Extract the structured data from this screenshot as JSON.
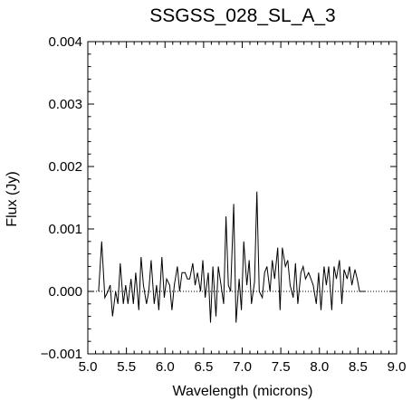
{
  "chart_data": {
    "type": "line",
    "title": "SSGSS_028_SL_A_3",
    "xlabel": "Wavelength (microns)",
    "ylabel": "Flux (Jy)",
    "xlim": [
      5.0,
      9.0
    ],
    "ylim": [
      -0.001,
      0.004
    ],
    "xticks": [
      5.0,
      5.5,
      6.0,
      6.5,
      7.0,
      7.5,
      8.0,
      8.5,
      9.0
    ],
    "xtick_labels": [
      "5.0",
      "5.5",
      "6.0",
      "6.5",
      "7.0",
      "7.5",
      "8.0",
      "8.5",
      "9.0"
    ],
    "yticks": [
      -0.001,
      0.0,
      0.001,
      0.002,
      0.003,
      0.004
    ],
    "ytick_labels": [
      "−0.001",
      "0.000",
      "0.001",
      "0.002",
      "0.003",
      "0.004"
    ],
    "grid": false,
    "reference_line": {
      "y": 0.0,
      "style": "dotted"
    },
    "series": [
      {
        "x": [
          5.14,
          5.18,
          5.22,
          5.26,
          5.29,
          5.32,
          5.36,
          5.39,
          5.42,
          5.46,
          5.49,
          5.52,
          5.56,
          5.59,
          5.62,
          5.66,
          5.69,
          5.72,
          5.76,
          5.79,
          5.82,
          5.86,
          5.89,
          5.92,
          5.96,
          5.99,
          6.02,
          6.06,
          6.09,
          6.12,
          6.16,
          6.19,
          6.22,
          6.26,
          6.29,
          6.32,
          6.36,
          6.39,
          6.42,
          6.46,
          6.49,
          6.52,
          6.56,
          6.59,
          6.62,
          6.66,
          6.69,
          6.72,
          6.76,
          6.79,
          6.82,
          6.85,
          6.89,
          6.92,
          6.96,
          6.99,
          7.02,
          7.06,
          7.09,
          7.12,
          7.16,
          7.19,
          7.22,
          7.26,
          7.29,
          7.32,
          7.36,
          7.39,
          7.42,
          7.46,
          7.49,
          7.52,
          7.56,
          7.59,
          7.62,
          7.66,
          7.69,
          7.72,
          7.76,
          7.79,
          7.82,
          7.86,
          7.89,
          7.92,
          7.96,
          7.99,
          8.02,
          8.06,
          8.09,
          8.12,
          8.16,
          8.19,
          8.22,
          8.26,
          8.29,
          8.32,
          8.36,
          8.39,
          8.42,
          8.46,
          8.49,
          8.52,
          8.56,
          8.6
        ],
        "y": [
          0.0,
          0.0008,
          -0.0001,
          0.0,
          0.0001,
          -0.0004,
          0.0,
          -0.0002,
          0.00045,
          -0.0002,
          0.0001,
          -0.0002,
          0.0002,
          -0.0002,
          0.0003,
          -0.0003,
          0.00055,
          0.0001,
          -0.0002,
          0.0,
          0.0005,
          -0.0002,
          0.0001,
          -0.0003,
          0.00055,
          -0.0001,
          0.0002,
          0.0001,
          -0.0003,
          0.0001,
          0.0004,
          0.0,
          0.0003,
          0.0003,
          0.0002,
          0.0002,
          0.00045,
          0.0001,
          0.0003,
          0.0,
          0.0005,
          -0.0001,
          0.0003,
          -0.0005,
          0.0004,
          -0.0004,
          0.0004,
          0.00015,
          -0.0002,
          0.0012,
          0.0001,
          0.0,
          0.0014,
          -0.0005,
          0.0002,
          -0.0003,
          0.0008,
          0.0001,
          0.0005,
          -0.0002,
          0.00015,
          0.0016,
          0.0,
          -0.0001,
          0.0003,
          0.0004,
          0.0,
          0.0005,
          0.0002,
          0.0007,
          -0.0003,
          0.0007,
          0.0004,
          0.0005,
          0.0001,
          -0.0001,
          0.00045,
          -0.0002,
          0.0003,
          0.0004,
          0.0002,
          0.0003,
          0.0002,
          0.0001,
          -0.0002,
          0.0003,
          -0.0003,
          0.0004,
          0.0001,
          0.0004,
          -0.0003,
          0.0004,
          0.0002,
          0.0005,
          -0.0002,
          0.00035,
          0.0002,
          0.0004,
          0.0001,
          0.00035,
          0.0002,
          0.0,
          0.0,
          0.0
        ]
      }
    ]
  }
}
